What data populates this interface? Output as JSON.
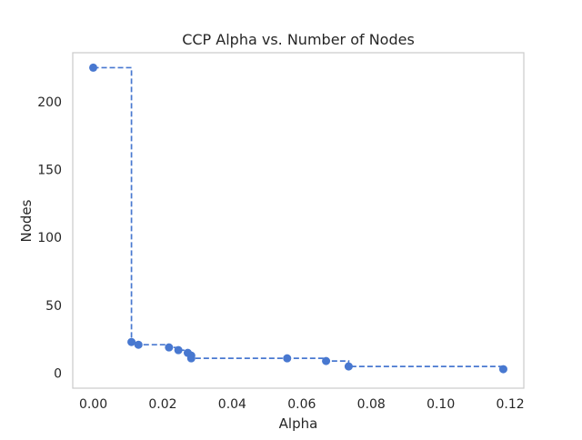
{
  "chart_data": {
    "type": "line",
    "title": "CCP Alpha vs. Number of Nodes",
    "xlabel": "Alpha",
    "ylabel": "Nodes",
    "xlim": [
      -0.0059,
      0.1239
    ],
    "ylim": [
      -11,
      236
    ],
    "grid": false,
    "legend": "none",
    "drawstyle": "steps-post",
    "series": [
      {
        "color": "#4878d0",
        "marker": "circle",
        "linestyle": "dashed",
        "points": [
          {
            "x": 0.0,
            "y": 225
          },
          {
            "x": 0.011,
            "y": 23
          },
          {
            "x": 0.013,
            "y": 21
          },
          {
            "x": 0.0218,
            "y": 19
          },
          {
            "x": 0.0245,
            "y": 17
          },
          {
            "x": 0.0272,
            "y": 15
          },
          {
            "x": 0.0282,
            "y": 13
          },
          {
            "x": 0.0282,
            "y": 11
          },
          {
            "x": 0.0558,
            "y": 11
          },
          {
            "x": 0.067,
            "y": 9
          },
          {
            "x": 0.0735,
            "y": 5
          },
          {
            "x": 0.118,
            "y": 3
          }
        ]
      }
    ],
    "xticks": [
      "0.00",
      "0.02",
      "0.04",
      "0.06",
      "0.08",
      "0.10",
      "0.12"
    ],
    "xtick_values": [
      0.0,
      0.02,
      0.04,
      0.06,
      0.08,
      0.1,
      0.12
    ],
    "yticks": [
      "0",
      "50",
      "100",
      "150",
      "200"
    ],
    "ytick_values": [
      0,
      50,
      100,
      150,
      200
    ]
  }
}
